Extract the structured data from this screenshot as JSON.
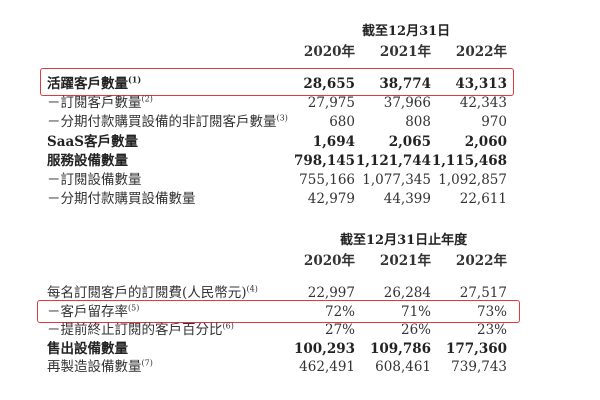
{
  "section1": {
    "header": "截至12月31日",
    "years": [
      "2020年",
      "2021年",
      "2022年"
    ],
    "rows": [
      {
        "label": "活躍客戶數量",
        "note": "(1)",
        "values": [
          "28,655",
          "38,774",
          "43,313"
        ],
        "bold": true,
        "highlighted": true
      },
      {
        "label": "－訂閱客戶數量",
        "note": "(2)",
        "values": [
          "27,975",
          "37,966",
          "42,343"
        ],
        "bold": false
      },
      {
        "label": "－分期付款購買設備的非訂閱客戶數量",
        "note": "(3)",
        "values": [
          "680",
          "808",
          "970"
        ],
        "bold": false
      },
      {
        "label": "SaaS客戶數量",
        "note": "",
        "values": [
          "1,694",
          "2,065",
          "2,060"
        ],
        "bold": true
      },
      {
        "label": "服務設備數量",
        "note": "",
        "values": [
          "798,145",
          "1,121,744",
          "1,115,468"
        ],
        "bold": true
      },
      {
        "label": "－訂閱設備數量",
        "note": "",
        "values": [
          "755,166",
          "1,077,345",
          "1,092,857"
        ],
        "bold": false
      },
      {
        "label": "－分期付款購買設備數量",
        "note": "",
        "values": [
          "42,979",
          "44,399",
          "22,611"
        ],
        "bold": false
      }
    ]
  },
  "section2": {
    "header": "截至12月31日止年度",
    "years": [
      "2020年",
      "2021年",
      "2022年"
    ],
    "rows": [
      {
        "label": "每名訂閱客戶的訂閱費(人民幣元)",
        "note": "(4)",
        "values": [
          "22,997",
          "26,284",
          "27,517"
        ],
        "bold": false
      },
      {
        "label": "－客戶留存率",
        "note": "(5)",
        "values": [
          "72%",
          "71%",
          "73%"
        ],
        "bold": false,
        "highlighted": true
      },
      {
        "label": "－提前終止訂閱的客戶百分比",
        "note": "(6)",
        "values": [
          "27%",
          "26%",
          "23%"
        ],
        "bold": false
      },
      {
        "label": "售出設備數量",
        "note": "",
        "values": [
          "100,293",
          "109,786",
          "177,360"
        ],
        "bold": true
      },
      {
        "label": "再製造設備數量",
        "note": "(7)",
        "values": [
          "462,491",
          "608,461",
          "739,743"
        ],
        "bold": false
      }
    ]
  },
  "highlight_color": "#e0393e"
}
